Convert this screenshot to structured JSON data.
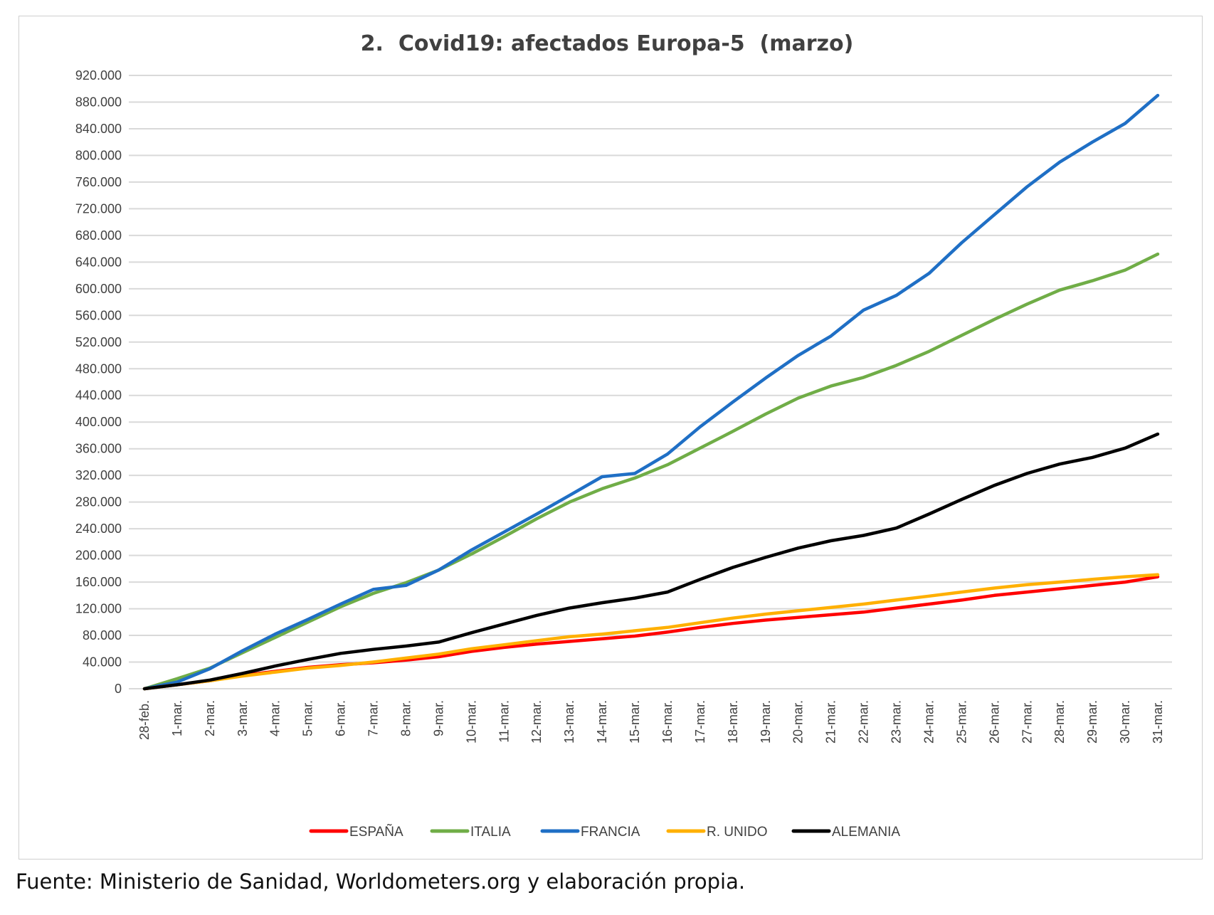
{
  "chart_data": {
    "type": "line",
    "title": "2.  Covid19: afectados Europa-5  (marzo)",
    "xlabel": "",
    "ylabel": "",
    "ylim": [
      0,
      920000
    ],
    "y_ticks": [
      0,
      40000,
      80000,
      120000,
      160000,
      200000,
      240000,
      280000,
      320000,
      360000,
      400000,
      440000,
      480000,
      520000,
      560000,
      600000,
      640000,
      680000,
      720000,
      760000,
      800000,
      840000,
      880000,
      920000
    ],
    "y_tick_labels": [
      "0",
      "40.000",
      "80.000",
      "120.000",
      "160.000",
      "200.000",
      "240.000",
      "280.000",
      "320.000",
      "360.000",
      "400.000",
      "440.000",
      "480.000",
      "520.000",
      "560.000",
      "600.000",
      "640.000",
      "680.000",
      "720.000",
      "760.000",
      "800.000",
      "840.000",
      "880.000",
      "920.000"
    ],
    "grid": true,
    "legend_position": "bottom",
    "categories": [
      "28-feb.",
      "1-mar.",
      "2-mar.",
      "3-mar.",
      "4-mar.",
      "5-mar.",
      "6-mar.",
      "7-mar.",
      "8-mar.",
      "9-mar.",
      "10-mar.",
      "11-mar.",
      "12-mar.",
      "13-mar.",
      "14-mar.",
      "15-mar.",
      "16-mar.",
      "17-mar.",
      "18-mar.",
      "19-mar.",
      "20-mar.",
      "21-mar.",
      "22-mar.",
      "23-mar.",
      "24-mar.",
      "25-mar.",
      "26-mar.",
      "27-mar.",
      "28-mar.",
      "29-mar.",
      "30-mar.",
      "31-mar."
    ],
    "series": [
      {
        "name": "ESPAÑA",
        "color": "#ff0000",
        "values": [
          0,
          6000,
          12000,
          20000,
          26000,
          32000,
          36000,
          39000,
          43000,
          48000,
          56000,
          62000,
          67000,
          71000,
          75000,
          79000,
          85000,
          92000,
          98000,
          103000,
          107000,
          111000,
          115000,
          121000,
          127000,
          133000,
          140000,
          145000,
          150000,
          155000,
          160000,
          168000
        ]
      },
      {
        "name": "ITALIA",
        "color": "#70ad47",
        "values": [
          0,
          15000,
          31000,
          54000,
          77000,
          100000,
          123000,
          143000,
          159000,
          178000,
          202000,
          228000,
          255000,
          280000,
          300000,
          316000,
          336000,
          361000,
          386000,
          412000,
          436000,
          454000,
          467000,
          485000,
          506000,
          530000,
          554000,
          577000,
          598000,
          612000,
          628000,
          652000
        ]
      },
      {
        "name": "FRANCIA",
        "color": "#1f6fc5",
        "values": [
          0,
          10000,
          30000,
          57000,
          82000,
          104000,
          127000,
          149000,
          155000,
          178000,
          208000,
          235000,
          262000,
          290000,
          318000,
          323000,
          352000,
          393000,
          430000,
          466000,
          500000,
          529000,
          568000,
          590000,
          623000,
          669000,
          711000,
          753000,
          790000,
          820000,
          848000,
          890000
        ]
      },
      {
        "name": "R. UNIDO",
        "color": "#ffb000",
        "values": [
          0,
          6000,
          12000,
          19000,
          25000,
          31000,
          35000,
          40000,
          46000,
          52000,
          60000,
          66000,
          72000,
          78000,
          82000,
          87000,
          92000,
          99000,
          106000,
          112000,
          117000,
          122000,
          127000,
          133000,
          139000,
          145000,
          151000,
          156000,
          160000,
          164000,
          168000,
          171000
        ]
      },
      {
        "name": "ALEMANIA",
        "color": "#000000",
        "values": [
          0,
          6000,
          13000,
          23000,
          34000,
          44000,
          53000,
          59000,
          64000,
          70000,
          84000,
          97000,
          110000,
          121000,
          129000,
          136000,
          145000,
          164000,
          182000,
          197000,
          211000,
          222000,
          230000,
          241000,
          262000,
          284000,
          305000,
          323000,
          337000,
          347000,
          361000,
          382000
        ]
      }
    ]
  },
  "source_note": "Fuente: Ministerio de Sanidad, Worldometers.org y elaboración propia."
}
